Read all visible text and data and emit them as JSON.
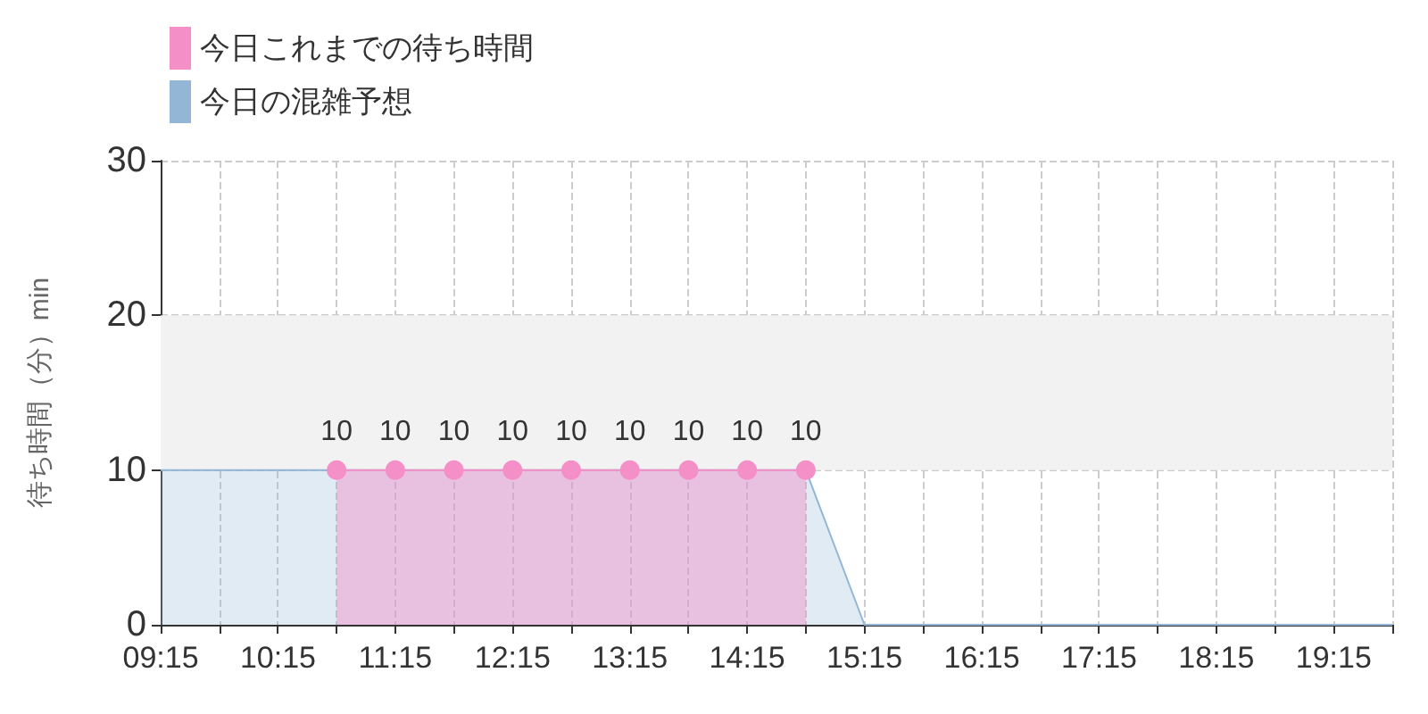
{
  "chart_data": {
    "type": "area",
    "ylabel": "待ち時間（分）min",
    "legend": "top left",
    "grid": true,
    "line_style": "solid",
    "xlim": [
      9.25,
      19.75
    ],
    "xticks": [
      {
        "value": 9.25,
        "label": "09:15"
      },
      {
        "value": 9.75,
        "label": null
      },
      {
        "value": 10.25,
        "label": "10:15"
      },
      {
        "value": 10.75,
        "label": null
      },
      {
        "value": 11.25,
        "label": "11:15"
      },
      {
        "value": 11.75,
        "label": null
      },
      {
        "value": 12.25,
        "label": "12:15"
      },
      {
        "value": 12.75,
        "label": null
      },
      {
        "value": 13.25,
        "label": "13:15"
      },
      {
        "value": 13.75,
        "label": null
      },
      {
        "value": 14.25,
        "label": "14:15"
      },
      {
        "value": 14.75,
        "label": null
      },
      {
        "value": 15.25,
        "label": "15:15"
      },
      {
        "value": 15.75,
        "label": null
      },
      {
        "value": 16.25,
        "label": "16:15"
      },
      {
        "value": 16.75,
        "label": null
      },
      {
        "value": 17.25,
        "label": "17:15"
      },
      {
        "value": 17.75,
        "label": null
      },
      {
        "value": 18.25,
        "label": "18:15"
      },
      {
        "value": 18.75,
        "label": null
      },
      {
        "value": 19.25,
        "label": "19:15"
      },
      {
        "value": 19.75,
        "label": null
      }
    ],
    "ylim": [
      0,
      30
    ],
    "yticks": [
      0,
      10,
      20,
      30
    ],
    "bands": [
      {
        "axis": "y",
        "from": 10,
        "to": 20,
        "color": "#f2f2f2"
      }
    ],
    "series": [
      {
        "name": "今日これまでの待ち時間",
        "color": "#f48fc8",
        "marker": "circle",
        "x": [
          10.75,
          11.25,
          11.75,
          12.25,
          12.75,
          13.25,
          13.75,
          14.25,
          14.75
        ],
        "values": [
          10,
          10,
          10,
          10,
          10,
          10,
          10,
          10,
          10
        ],
        "value_labels": [
          "10",
          "10",
          "10",
          "10",
          "10",
          "10",
          "10",
          "10",
          "10"
        ]
      },
      {
        "name": "今日の混雑予想",
        "color": "#93b6d6",
        "marker": "none",
        "x": [
          9.25,
          9.75,
          10.25,
          10.75,
          11.25,
          11.75,
          12.25,
          12.75,
          13.25,
          13.75,
          14.25,
          14.75,
          15.25,
          15.75,
          16.25,
          16.75,
          17.25,
          17.75,
          18.25,
          18.75,
          19.25,
          19.75
        ],
        "values": [
          10,
          10,
          10,
          10,
          10,
          10,
          10,
          10,
          10,
          10,
          10,
          10,
          0,
          0,
          0,
          0,
          0,
          0,
          0,
          0,
          0,
          0
        ]
      }
    ]
  }
}
